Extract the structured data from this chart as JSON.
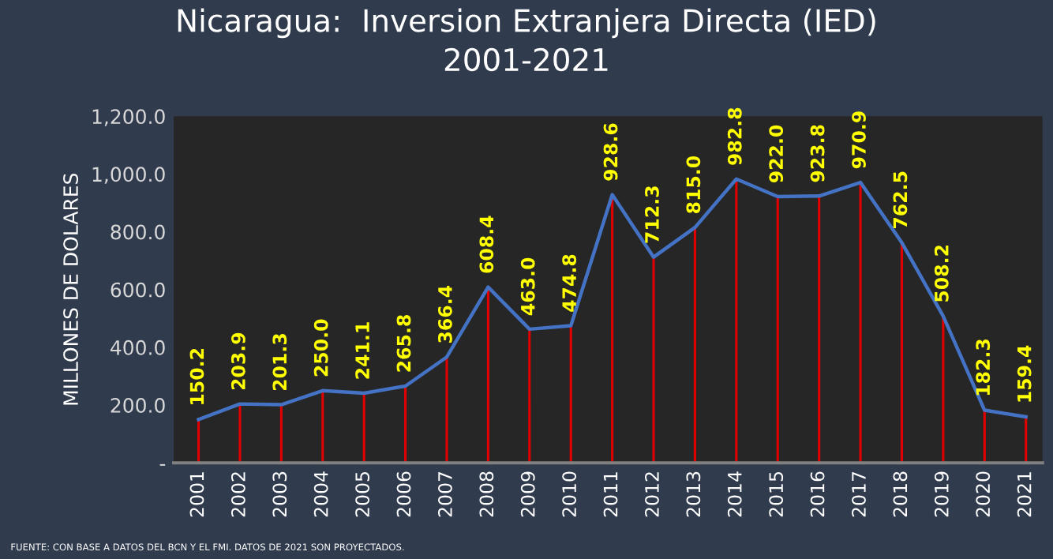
{
  "chart_data": {
    "type": "line",
    "title": "Nicaragua:  Inversion Extranjera Directa (IED)\n2001-2021",
    "ylabel": "MILLONES DE DOLARES",
    "categories": [
      "2001",
      "2002",
      "2003",
      "2004",
      "2005",
      "2006",
      "2007",
      "2008",
      "2009",
      "2010",
      "2011",
      "2012",
      "2013",
      "2014",
      "2015",
      "2016",
      "2017",
      "2018",
      "2019",
      "2020",
      "2021"
    ],
    "series": [
      {
        "type": "bar",
        "color": "#e00000",
        "values": [
          150.2,
          203.9,
          201.3,
          250.0,
          241.1,
          265.8,
          366.4,
          608.4,
          463.0,
          474.8,
          928.6,
          712.3,
          815.0,
          982.8,
          922.0,
          923.8,
          970.9,
          762.5,
          508.2,
          182.3,
          159.4
        ]
      },
      {
        "color": "#4472c4",
        "values": [
          150.2,
          203.9,
          201.3,
          250.0,
          241.1,
          265.8,
          366.4,
          608.4,
          463.0,
          474.8,
          928.6,
          712.3,
          815.0,
          982.8,
          922.0,
          923.8,
          970.9,
          762.5,
          508.2,
          182.3,
          159.4
        ],
        "value_labels": [
          "150.2",
          "203.9",
          "201.3",
          "250.0",
          "241.1",
          "265.8",
          "366.4",
          "608.4",
          "463.0",
          "474.8",
          "928.6",
          "712.3",
          "815.0",
          "982.8",
          "922.0",
          "923.8",
          "970.9",
          "762.5",
          "508.2",
          "182.3",
          "159.4"
        ]
      }
    ],
    "marker": "none",
    "ylim": [
      0,
      1200
    ],
    "yticks": [
      {
        "value": 0,
        "label": "-"
      },
      {
        "value": 200,
        "label": "200.0"
      },
      {
        "value": 400,
        "label": "400.0"
      },
      {
        "value": 600,
        "label": "600.0"
      },
      {
        "value": 800,
        "label": "800.0"
      },
      {
        "value": 1000,
        "label": "1,000.0"
      },
      {
        "value": 1200,
        "label": "1,200.0"
      }
    ],
    "annotations": [
      "FUENTE: CON BASE A DATOS DEL BCN Y EL FMI. DATOS DE 2021 SON PROYECTADOS."
    ]
  }
}
